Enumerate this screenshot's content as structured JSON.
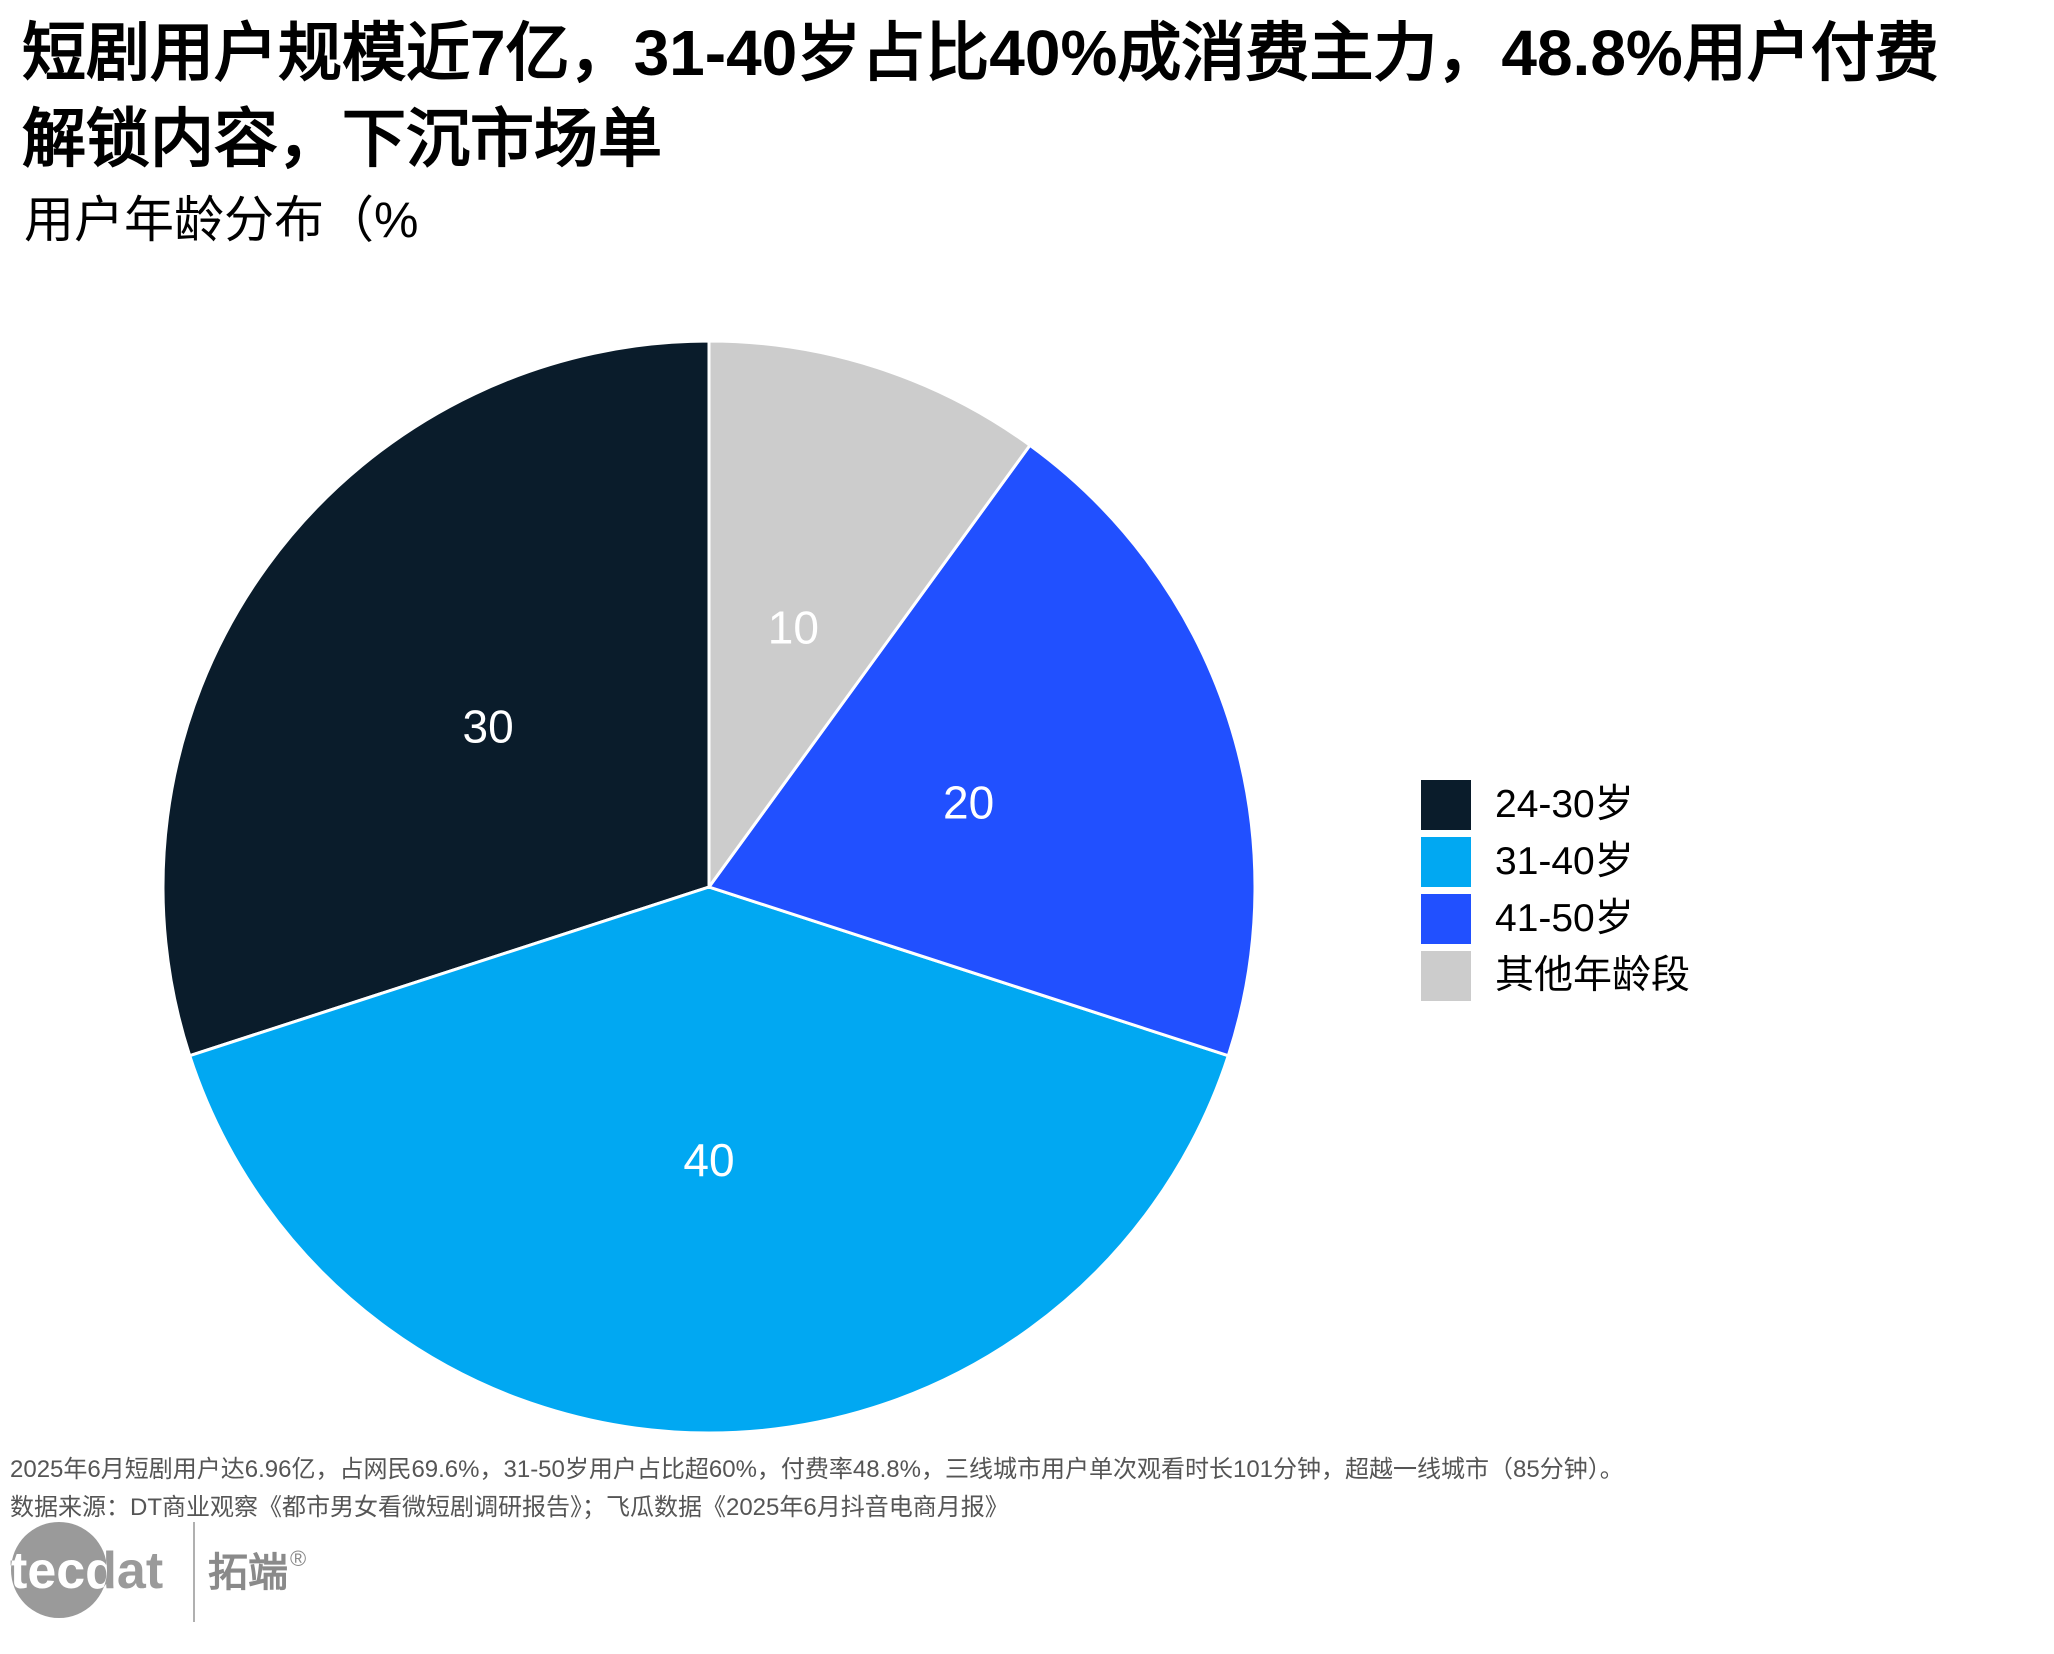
{
  "headline": {
    "line1": "短剧用户规模近7亿，31-40岁占比40%成消费主力，48.8%用户付费",
    "line2": "解锁内容，下沉市场单"
  },
  "chart_data": {
    "type": "pie",
    "title": "用户年龄分布（%",
    "categories": [
      "24-30岁",
      "31-40岁",
      "41-50岁",
      "其他年龄段"
    ],
    "values": [
      30,
      40,
      20,
      10
    ],
    "colors": [
      "#0a1c2b",
      "#01a8f2",
      "#2150ff",
      "#cccccc"
    ],
    "legend_position": "right",
    "direction": "counterclockwise from top"
  },
  "footnote": "2025年6月短剧用户达6.96亿，占网民69.6%，31-50岁用户占比超60%，付费率48.8%，三线城市用户单次观看时长101分钟，超越一线城市（85分钟）。",
  "source": "数据来源：DT商业观察《都市男女看微短剧调研报告》；飞瓜数据《2025年6月抖音电商月报》",
  "logo": {
    "text": "tecdat",
    "cn": "拓端",
    "mark": "®"
  }
}
